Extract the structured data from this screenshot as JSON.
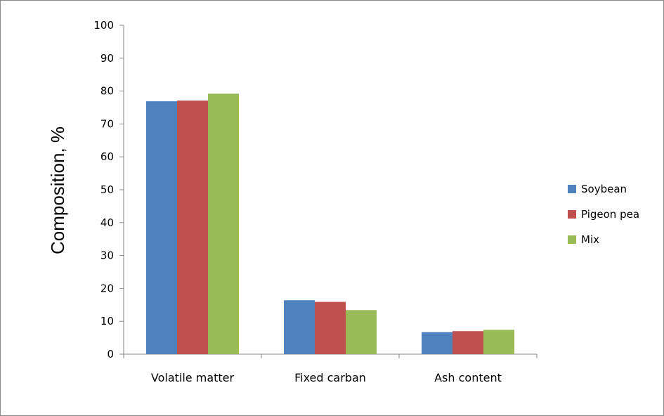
{
  "chart_data": {
    "type": "bar",
    "title": "",
    "xlabel": "",
    "ylabel": "Composition, %",
    "ylim": [
      0,
      100
    ],
    "yticks": [
      0,
      10,
      20,
      30,
      40,
      50,
      60,
      70,
      80,
      90,
      100
    ],
    "grid": false,
    "legend_position": "right",
    "categories": [
      "Volatile matter",
      "Fixed carban",
      "Ash content"
    ],
    "series": [
      {
        "name": "Soybean",
        "color": "#4F81BD",
        "values": [
          76.9,
          16.4,
          6.7
        ]
      },
      {
        "name": "Pigeon pea",
        "color": "#C0504D",
        "values": [
          77.1,
          15.9,
          7.0
        ]
      },
      {
        "name": "Mix",
        "color": "#9BBB59",
        "values": [
          79.2,
          13.4,
          7.4
        ]
      }
    ]
  }
}
